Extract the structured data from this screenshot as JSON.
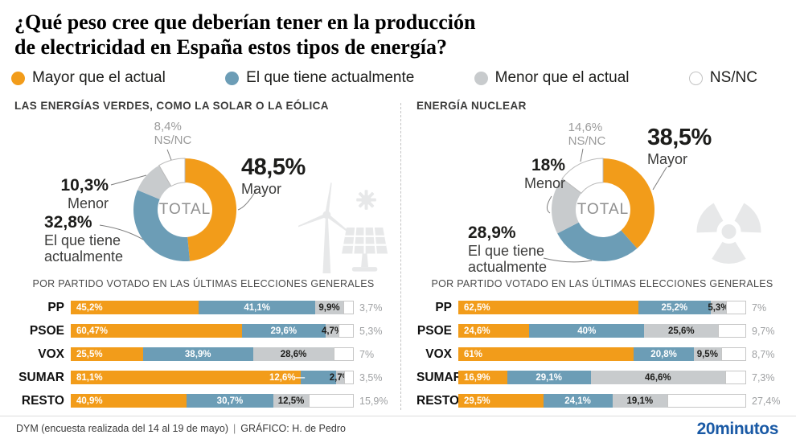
{
  "title": {
    "line1": "¿Qué peso cree que deberían tener en la producción",
    "line2": "de electricidad en España estos tipos de energía?"
  },
  "colors": {
    "mayor": "#F29C1A",
    "actual": "#6C9DB6",
    "menor": "#C8CBCD",
    "nsnc": "#FFFFFF",
    "nsnc_border": "#B9B9B9",
    "icon_gray": "#E7E8E9",
    "brand_blue": "#1959A5"
  },
  "legend": {
    "items": [
      {
        "key": "mayor",
        "label": "Mayor que el actual",
        "color": "#F29C1A"
      },
      {
        "key": "actual",
        "label": "El que tiene actualmente",
        "color": "#6C9DB6"
      },
      {
        "key": "menor",
        "label": "Menor que el actual",
        "color": "#C8CBCD"
      },
      {
        "key": "nsnc",
        "label": "NS/NC",
        "color": "#FFFFFF"
      }
    ]
  },
  "panels": [
    {
      "id": "green-energy",
      "title": "LAS ENERGÍAS VERDES, COMO LA SOLAR O LA EÓLICA",
      "icon": "wind-solar-icon",
      "donut": {
        "center_label": "TOTAL",
        "slices": [
          {
            "key": "mayor",
            "value": 48.5,
            "value_label": "48,5%",
            "text": "Mayor"
          },
          {
            "key": "actual",
            "value": 32.8,
            "value_label": "32,8%",
            "text": "El que tiene actualmente"
          },
          {
            "key": "menor",
            "value": 10.3,
            "value_label": "10,3%",
            "text": "Menor"
          },
          {
            "key": "nsnc",
            "value": 8.4,
            "value_label": "8,4%",
            "text": "NS/NC"
          }
        ]
      },
      "bars_title": "POR PARTIDO VOTADO EN LAS ÚLTIMAS ELECCIONES GENERALES",
      "rows": [
        {
          "party": "PP",
          "segments": [
            {
              "label": "45,2%",
              "value": 45.2
            },
            {
              "label": "41,1%",
              "value": 41.1
            },
            {
              "label": "9,9%",
              "value": 9.9
            },
            {
              "label": "3,7%",
              "value": 3.7
            }
          ]
        },
        {
          "party": "PSOE",
          "segments": [
            {
              "label": "60,47%",
              "value": 60.47
            },
            {
              "label": "29,6%",
              "value": 29.6
            },
            {
              "label": "4,7%",
              "value": 4.7
            },
            {
              "label": "5,3%",
              "value": 5.3
            }
          ]
        },
        {
          "party": "VOX",
          "segments": [
            {
              "label": "25,5%",
              "value": 25.5
            },
            {
              "label": "38,9%",
              "value": 38.9
            },
            {
              "label": "28,6%",
              "value": 28.6
            },
            {
              "label": "7%",
              "value": 7
            }
          ]
        },
        {
          "party": "SUMAR",
          "segments": [
            {
              "label": "81,1%",
              "value": 81.1
            },
            {
              "label": "12,6%—",
              "value": 12.6,
              "outside": "left"
            },
            {
              "label": "2,7%",
              "value": 2.7
            },
            {
              "label": "3,5%",
              "value": 3.5
            }
          ]
        },
        {
          "party": "RESTO",
          "segments": [
            {
              "label": "40,9%",
              "value": 40.9
            },
            {
              "label": "30,7%",
              "value": 30.7
            },
            {
              "label": "12,5%",
              "value": 12.5
            },
            {
              "label": "15,9%",
              "value": 15.9
            }
          ]
        }
      ]
    },
    {
      "id": "nuclear-energy",
      "title": "ENERGÍA NUCLEAR",
      "icon": "radiation-icon",
      "donut": {
        "center_label": "TOTAL",
        "slices": [
          {
            "key": "mayor",
            "value": 38.5,
            "value_label": "38,5%",
            "text": "Mayor"
          },
          {
            "key": "actual",
            "value": 28.9,
            "value_label": "28,9%",
            "text": "El que tiene actualmente"
          },
          {
            "key": "menor",
            "value": 18.0,
            "value_label": "18%",
            "text": "Menor"
          },
          {
            "key": "nsnc",
            "value": 14.6,
            "value_label": "14,6%",
            "text": "NS/NC"
          }
        ]
      },
      "bars_title": "POR PARTIDO VOTADO EN LAS ÚLTIMAS ELECCIONES GENERALES",
      "rows": [
        {
          "party": "PP",
          "segments": [
            {
              "label": "62,5%",
              "value": 62.5
            },
            {
              "label": "25,2%",
              "value": 25.2
            },
            {
              "label": "5,3%",
              "value": 5.3
            },
            {
              "label": "7%",
              "value": 7
            }
          ]
        },
        {
          "party": "PSOE",
          "segments": [
            {
              "label": "24,6%",
              "value": 24.6
            },
            {
              "label": "40%",
              "value": 40
            },
            {
              "label": "25,6%",
              "value": 25.6
            },
            {
              "label": "9,7%",
              "value": 9.7
            }
          ]
        },
        {
          "party": "VOX",
          "segments": [
            {
              "label": "61%",
              "value": 61
            },
            {
              "label": "20,8%",
              "value": 20.8
            },
            {
              "label": "9,5%",
              "value": 9.5
            },
            {
              "label": "8,7%",
              "value": 8.7
            }
          ]
        },
        {
          "party": "SUMAR",
          "segments": [
            {
              "label": "16,9%",
              "value": 16.9
            },
            {
              "label": "29,1%",
              "value": 29.1
            },
            {
              "label": "46,6%",
              "value": 46.6
            },
            {
              "label": "7,3%",
              "value": 7.3
            }
          ]
        },
        {
          "party": "RESTO",
          "segments": [
            {
              "label": "29,5%",
              "value": 29.5
            },
            {
              "label": "24,1%",
              "value": 24.1
            },
            {
              "label": "19,1%",
              "value": 19.1
            },
            {
              "label": "27,4%",
              "value": 27.4
            }
          ]
        }
      ]
    }
  ],
  "footer": {
    "source": "DYM (encuesta realizada del 14 al 19 de mayo)",
    "separator": "|",
    "credit": "GRÁFICO: H. de Pedro",
    "brand": "20minutos"
  },
  "chart_data": [
    {
      "type": "pie",
      "title": "LAS ENERGÍAS VERDES, COMO LA SOLAR O LA EÓLICA — TOTAL",
      "labels": [
        "Mayor que el actual",
        "El que tiene actualmente",
        "Menor que el actual",
        "NS/NC"
      ],
      "values": [
        48.5,
        32.8,
        10.3,
        8.4
      ]
    },
    {
      "type": "bar",
      "title": "Energías verdes — POR PARTIDO VOTADO EN LAS ÚLTIMAS ELECCIONES GENERALES",
      "categories": [
        "PP",
        "PSOE",
        "VOX",
        "SUMAR",
        "RESTO"
      ],
      "series": [
        {
          "name": "Mayor que el actual",
          "values": [
            45.2,
            60.47,
            25.5,
            81.1,
            40.9
          ]
        },
        {
          "name": "El que tiene actualmente",
          "values": [
            41.1,
            29.6,
            38.9,
            12.6,
            30.7
          ]
        },
        {
          "name": "Menor que el actual",
          "values": [
            9.9,
            4.7,
            28.6,
            2.7,
            12.5
          ]
        },
        {
          "name": "NS/NC",
          "values": [
            3.7,
            5.3,
            7,
            3.5,
            15.9
          ]
        }
      ],
      "layout": "horizontal-stacked-100pct"
    },
    {
      "type": "pie",
      "title": "ENERGÍA NUCLEAR — TOTAL",
      "labels": [
        "Mayor que el actual",
        "El que tiene actualmente",
        "Menor que el actual",
        "NS/NC"
      ],
      "values": [
        38.5,
        28.9,
        18,
        14.6
      ]
    },
    {
      "type": "bar",
      "title": "Energía nuclear — POR PARTIDO VOTADO EN LAS ÚLTIMAS ELECCIONES GENERALES",
      "categories": [
        "PP",
        "PSOE",
        "VOX",
        "SUMAR",
        "RESTO"
      ],
      "series": [
        {
          "name": "Mayor que el actual",
          "values": [
            62.5,
            24.6,
            61,
            16.9,
            29.5
          ]
        },
        {
          "name": "El que tiene actualmente",
          "values": [
            25.2,
            40,
            20.8,
            29.1,
            24.1
          ]
        },
        {
          "name": "Menor que el actual",
          "values": [
            5.3,
            25.6,
            9.5,
            46.6,
            19.1
          ]
        },
        {
          "name": "NS/NC",
          "values": [
            7,
            9.7,
            8.7,
            7.3,
            27.4
          ]
        }
      ],
      "layout": "horizontal-stacked-100pct"
    }
  ]
}
